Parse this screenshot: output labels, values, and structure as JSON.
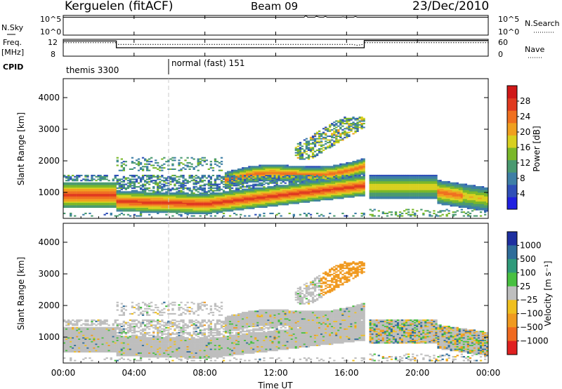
{
  "header": {
    "radar": "Kerguelen (fitACF)",
    "beam": "Beam 09",
    "date": "23/Dec/2010"
  },
  "nsky_panel": {
    "left_label": "N.Sky",
    "right_label": "N.Search",
    "tick_top": "10^5",
    "tick_bottom": "10^0",
    "right_tick_top": "10^5",
    "right_tick_bottom": "10^0"
  },
  "freq_panel": {
    "left_label_1": "Freq.",
    "left_label_2": "[MHz]",
    "left_tick_top": "12",
    "left_tick_bottom": "8",
    "right_label": "Nave",
    "right_tick_top": "60",
    "right_tick_bottom": "0"
  },
  "cpid_panel": {
    "label": "CPID",
    "modes": [
      {
        "start_hour": 0,
        "text": "themis 3300"
      },
      {
        "start_hour": 6,
        "text": "normal (fast) 151"
      }
    ]
  },
  "time_axis": {
    "label": "Time UT",
    "ticks": [
      "00:00",
      "04:00",
      "08:00",
      "12:00",
      "16:00",
      "20:00",
      "00:00"
    ]
  },
  "colorbars": {
    "power": {
      "label": "Power [dB]",
      "ticks": [
        "4",
        "8",
        "12",
        "16",
        "20",
        "24",
        "28"
      ]
    },
    "velocity": {
      "label": "Velocity [m s⁻¹]",
      "ticks": [
        "1000",
        "500",
        "100",
        "25",
        "−25",
        "−100",
        "−500",
        "−1000"
      ]
    }
  },
  "chart_data": [
    {
      "type": "line",
      "title": "N.Sky / N.Search",
      "x_range_hours": [
        0,
        24
      ],
      "ylim": [
        0,
        5
      ],
      "ytick_labels": [
        "10^0",
        "10^5"
      ],
      "description": "Counts near the 10^5 level across the whole day with small spikes between 13:00 and 17:00"
    },
    {
      "type": "line",
      "title": "Freq. / Nave",
      "x_range_hours": [
        0,
        24
      ],
      "ylim": [
        8,
        12
      ],
      "ytick_labels": [
        "8",
        "12"
      ],
      "series": [
        {
          "name": "Freq.",
          "x": [
            0,
            3,
            3,
            17,
            17,
            24
          ],
          "y": [
            11.6,
            11.6,
            10.0,
            10.0,
            11.7,
            11.7
          ]
        },
        {
          "name": "Nave",
          "x": [
            0,
            3,
            3,
            16.3,
            16.6,
            17,
            17,
            24
          ],
          "y": [
            11.2,
            11.2,
            10.8,
            10.8,
            10.6,
            10.8,
            11.2,
            11.2
          ]
        }
      ]
    },
    {
      "type": "heatmap",
      "title": "Power [dB]",
      "xlabel": "",
      "ylabel": "Slant Range [km]",
      "x_range_hours": [
        0,
        24
      ],
      "ylim": [
        180,
        4600
      ],
      "yticks": [
        1000,
        2000,
        3000,
        4000
      ],
      "colorscale": {
        "min": 0,
        "max": 32,
        "ticks": [
          4,
          8,
          12,
          16,
          20,
          24,
          28
        ]
      },
      "features": [
        {
          "region": "lower band",
          "hours": [
            0,
            17
          ],
          "range_km": [
            300,
            1500
          ],
          "peak_db": 28
        },
        {
          "region": "upper arc",
          "hours": [
            9,
            17
          ],
          "range_km": [
            1200,
            2000
          ],
          "peak_db": 26
        },
        {
          "region": "far echoes",
          "hours": [
            13,
            17
          ],
          "range_km": [
            2000,
            3400
          ],
          "peak_db": 22
        },
        {
          "region": "post-17 band",
          "hours": [
            17,
            24
          ],
          "range_km": [
            500,
            1500
          ],
          "peak_db": 24
        }
      ]
    },
    {
      "type": "heatmap",
      "title": "Velocity [m s⁻¹]",
      "xlabel": "Time UT",
      "ylabel": "Slant Range [km]",
      "x_range_hours": [
        0,
        24
      ],
      "ylim": [
        180,
        4600
      ],
      "yticks": [
        1000,
        2000,
        3000,
        4000
      ],
      "colorscale": {
        "ticks": [
          1000,
          500,
          100,
          25,
          -25,
          -100,
          -500,
          -1000
        ]
      },
      "features": [
        {
          "region": "ground scatter band",
          "hours": [
            0,
            17
          ],
          "range_km": [
            300,
            1800
          ],
          "velocity": "about 0 (grey)"
        },
        {
          "region": "far echoes",
          "hours": [
            14.5,
            17
          ],
          "range_km": [
            2400,
            3400
          ],
          "velocity": "-100 to -500"
        },
        {
          "region": "post-17 band",
          "hours": [
            17,
            24
          ],
          "range_km": [
            200,
            1800
          ],
          "velocity": "mixed ±100"
        }
      ]
    }
  ]
}
